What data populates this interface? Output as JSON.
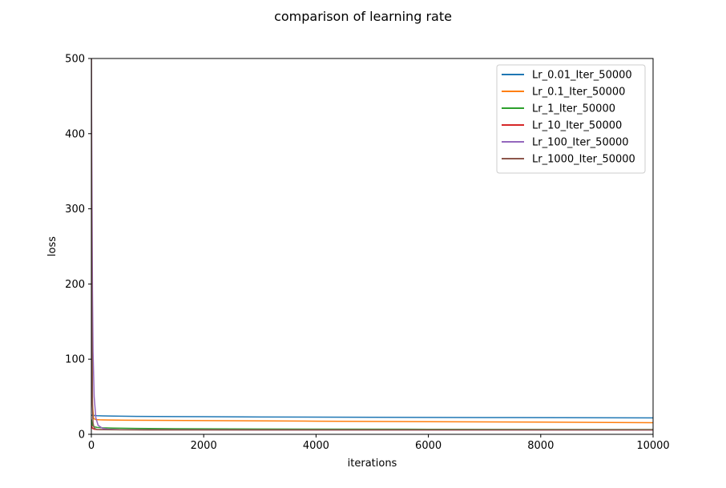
{
  "chart_data": {
    "type": "line",
    "title": "comparison of learning rate",
    "xlabel": "iterations",
    "ylabel": "loss",
    "xlim": [
      0,
      10000
    ],
    "ylim": [
      0,
      500
    ],
    "xticks": [
      "0",
      "2000",
      "4000",
      "6000",
      "8000",
      "10000"
    ],
    "yticks": [
      "0",
      "100",
      "200",
      "300",
      "400",
      "500"
    ],
    "xtick_values": [
      0,
      2000,
      4000,
      6000,
      8000,
      10000
    ],
    "ytick_values": [
      0,
      100,
      200,
      300,
      400,
      500
    ],
    "grid": false,
    "legend_position": "top-right",
    "series": [
      {
        "name": "Lr_0.01_Iter_50000",
        "color": "#1f77b4",
        "x": [
          0,
          30,
          60,
          100,
          200,
          400,
          800,
          1500,
          3000,
          5000,
          7000,
          10000
        ],
        "y": [
          25.5,
          25.2,
          25.0,
          24.8,
          24.5,
          24.2,
          23.9,
          23.6,
          23.1,
          22.6,
          22.3,
          21.8
        ]
      },
      {
        "name": "Lr_0.1_Iter_50000",
        "color": "#ff7f0e",
        "x": [
          0,
          10,
          20,
          40,
          80,
          150,
          300,
          600,
          1000,
          2000,
          4000,
          6000,
          8000,
          10000
        ],
        "y": [
          500,
          120,
          40,
          21,
          19.6,
          19.3,
          19.0,
          18.8,
          18.6,
          18.2,
          17.5,
          16.8,
          16.2,
          15.5
        ]
      },
      {
        "name": "Lr_1_Iter_50000",
        "color": "#2ca02c",
        "x": [
          0,
          20,
          50,
          100,
          200,
          400,
          800,
          1500,
          3000,
          6000,
          10000
        ],
        "y": [
          20,
          12,
          10,
          9.2,
          8.6,
          8.2,
          7.8,
          7.4,
          7.0,
          6.7,
          6.4
        ]
      },
      {
        "name": "Lr_10_Iter_50000",
        "color": "#d62728",
        "x": [
          0,
          20,
          50,
          100,
          200,
          400,
          1000,
          3000,
          10000
        ],
        "y": [
          12,
          8,
          6.8,
          6.4,
          6.2,
          6.1,
          6.0,
          5.9,
          5.8
        ]
      },
      {
        "name": "Lr_100_Iter_50000",
        "color": "#9467bd",
        "x": [
          0,
          10,
          20,
          30,
          50,
          80,
          120,
          200,
          300,
          500,
          1000,
          3000,
          10000
        ],
        "y": [
          500,
          330,
          190,
          110,
          50,
          22,
          12,
          8,
          6.8,
          6.3,
          6.0,
          5.9,
          5.8
        ]
      },
      {
        "name": "Lr_1000_Iter_50000",
        "color": "#8c564b",
        "x": [
          0,
          5,
          10,
          20,
          30,
          50,
          100,
          200,
          500,
          1000,
          3000,
          10000
        ],
        "y": [
          500,
          300,
          150,
          40,
          15,
          8,
          6.4,
          6.1,
          6.0,
          5.9,
          5.85,
          5.8
        ]
      }
    ]
  }
}
